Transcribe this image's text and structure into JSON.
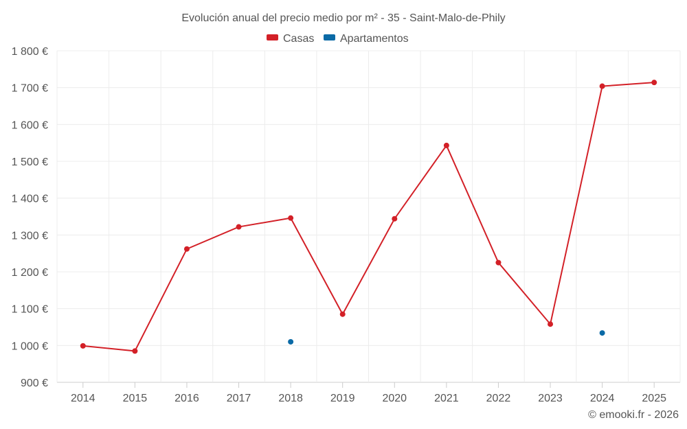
{
  "chart_data": {
    "type": "line",
    "title": "Evolución anual del precio medio por m² - 35 - Saint-Malo-de-Phily",
    "categories": [
      "2014",
      "2015",
      "2016",
      "2017",
      "2018",
      "2019",
      "2020",
      "2021",
      "2022",
      "2023",
      "2024",
      "2025"
    ],
    "series": [
      {
        "name": "Casas",
        "color": "#d32027",
        "values": [
          999,
          985,
          1262,
          1322,
          1346,
          1085,
          1344,
          1543,
          1225,
          1058,
          1704,
          1714
        ]
      },
      {
        "name": "Apartamentos",
        "color": "#0b6aa6",
        "values": [
          null,
          null,
          null,
          null,
          1010,
          null,
          null,
          null,
          null,
          null,
          1034,
          null
        ]
      }
    ],
    "ylim": [
      900,
      1800
    ],
    "yticks": [
      900,
      1000,
      1100,
      1200,
      1300,
      1400,
      1500,
      1600,
      1700,
      1800
    ],
    "ytick_labels": [
      "900 €",
      "1 000 €",
      "1 100 €",
      "1 200 €",
      "1 300 €",
      "1 400 €",
      "1 500 €",
      "1 600 €",
      "1 700 €",
      "1 800 €"
    ],
    "grid": true,
    "legend": "top-center",
    "credit": "© emooki.fr - 2026"
  }
}
